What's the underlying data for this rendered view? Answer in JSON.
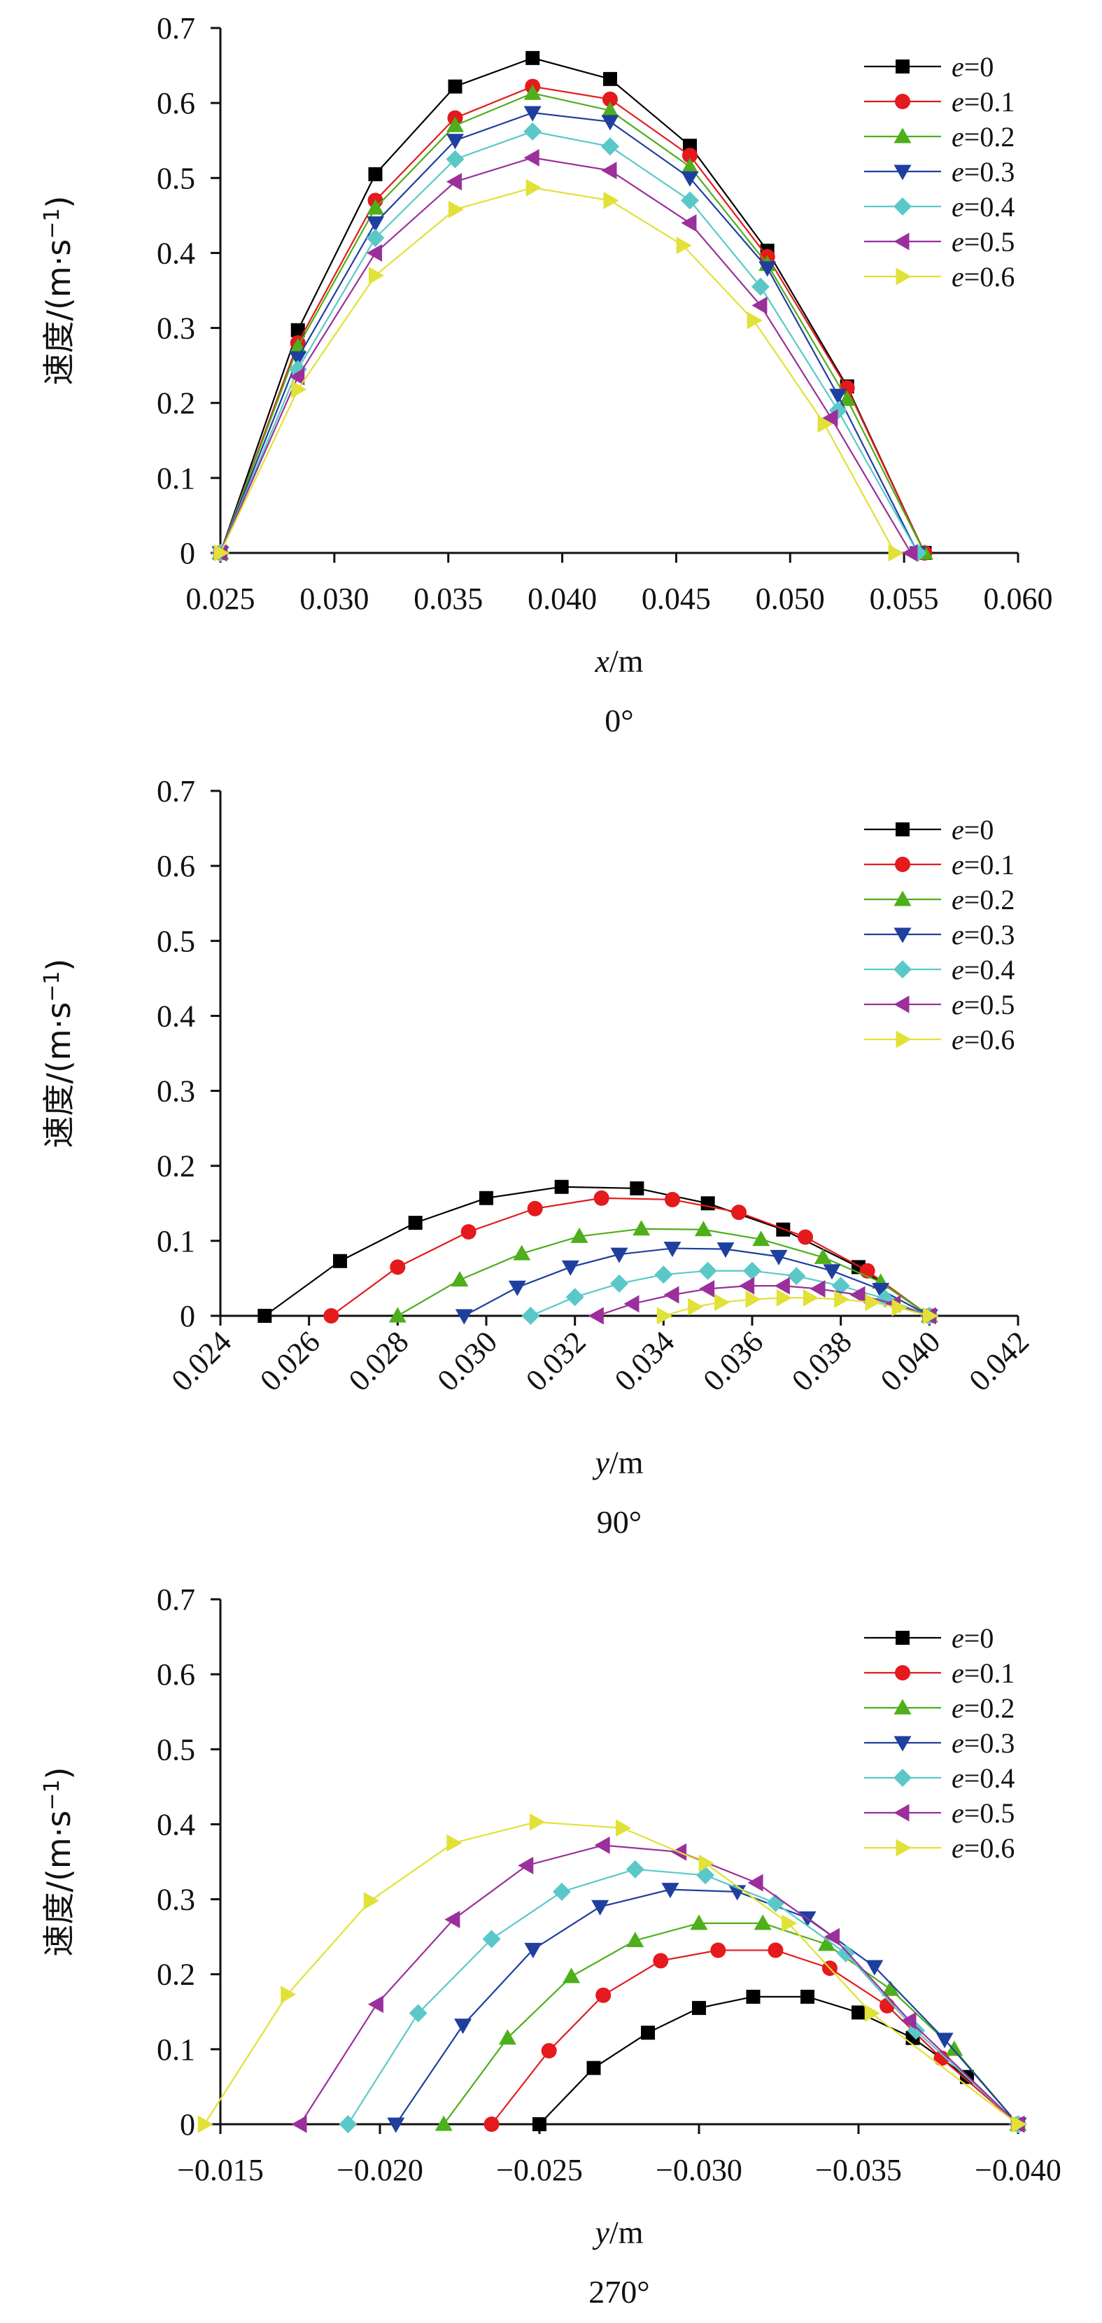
{
  "colors": {
    "e0": "#000000",
    "e01": "#e41a1c",
    "e02": "#4daf1a",
    "e03": "#1f3f9f",
    "e04": "#5bc8c8",
    "e05": "#9b2f9b",
    "e06": "#e1e137"
  },
  "chart_data": [
    {
      "type": "line",
      "caption": "0°",
      "xlabel_var": "x",
      "xlabel_unit": "/m",
      "ylabel": "速度/(m·s",
      "ylabel_sup": "−1",
      "ylabel_close": ")",
      "xlim": [
        0.025,
        0.06
      ],
      "ylim": [
        0,
        0.7
      ],
      "xticks": [
        "0.025",
        "0.030",
        "0.035",
        "0.040",
        "0.045",
        "0.050",
        "0.055",
        "0.060"
      ],
      "xtick_values": [
        0.025,
        0.03,
        0.035,
        0.04,
        0.045,
        0.05,
        0.055,
        0.06
      ],
      "yticks": [
        "0",
        "0.1",
        "0.2",
        "0.3",
        "0.4",
        "0.5",
        "0.6",
        "0.7"
      ],
      "ytick_values": [
        0,
        0.1,
        0.2,
        0.3,
        0.4,
        0.5,
        0.6,
        0.7
      ],
      "xtick_rotate": false,
      "legend_position": "top-right",
      "series": [
        {
          "name_var": "e",
          "name_val": "=0",
          "color_key": "e0",
          "marker": "square",
          "x": [
            0.025,
            0.0284,
            0.0318,
            0.0353,
            0.0387,
            0.0421,
            0.0456,
            0.049,
            0.0525,
            0.0559
          ],
          "y": [
            0,
            0.297,
            0.505,
            0.622,
            0.66,
            0.632,
            0.543,
            0.403,
            0.222,
            0
          ]
        },
        {
          "name_var": "e",
          "name_val": "=0.1",
          "color_key": "e01",
          "marker": "circle",
          "x": [
            0.025,
            0.0284,
            0.0318,
            0.0353,
            0.0387,
            0.0421,
            0.0456,
            0.049,
            0.0525,
            0.0559
          ],
          "y": [
            0,
            0.28,
            0.47,
            0.58,
            0.622,
            0.605,
            0.53,
            0.395,
            0.22,
            0
          ]
        },
        {
          "name_var": "e",
          "name_val": "=0.2",
          "color_key": "e02",
          "marker": "triangle-up",
          "x": [
            0.025,
            0.0284,
            0.0318,
            0.0353,
            0.0387,
            0.0421,
            0.0456,
            0.049,
            0.0525,
            0.0559
          ],
          "y": [
            0,
            0.275,
            0.46,
            0.57,
            0.613,
            0.59,
            0.515,
            0.385,
            0.205,
            0
          ]
        },
        {
          "name_var": "e",
          "name_val": "=0.3",
          "color_key": "e03",
          "marker": "triangle-down",
          "x": [
            0.025,
            0.0284,
            0.0318,
            0.0353,
            0.0387,
            0.0421,
            0.0456,
            0.049,
            0.0521,
            0.0556
          ],
          "y": [
            0,
            0.26,
            0.44,
            0.55,
            0.587,
            0.575,
            0.5,
            0.38,
            0.21,
            0
          ]
        },
        {
          "name_var": "e",
          "name_val": "=0.4",
          "color_key": "e04",
          "marker": "diamond",
          "x": [
            0.025,
            0.0284,
            0.0318,
            0.0353,
            0.0387,
            0.0421,
            0.0456,
            0.0487,
            0.0521,
            0.0556
          ],
          "y": [
            0,
            0.245,
            0.42,
            0.525,
            0.562,
            0.542,
            0.47,
            0.355,
            0.19,
            0
          ]
        },
        {
          "name_var": "e",
          "name_val": "=0.5",
          "color_key": "e05",
          "marker": "triangle-left",
          "x": [
            0.025,
            0.0284,
            0.0318,
            0.0353,
            0.0387,
            0.0421,
            0.0456,
            0.0487,
            0.0518,
            0.0553
          ],
          "y": [
            0,
            0.235,
            0.4,
            0.495,
            0.527,
            0.51,
            0.44,
            0.33,
            0.18,
            0
          ]
        },
        {
          "name_var": "e",
          "name_val": "=0.6",
          "color_key": "e06",
          "marker": "triangle-right",
          "x": [
            0.025,
            0.0284,
            0.0318,
            0.0353,
            0.0387,
            0.0421,
            0.0453,
            0.0484,
            0.0515,
            0.0546
          ],
          "y": [
            0,
            0.218,
            0.37,
            0.458,
            0.487,
            0.47,
            0.41,
            0.31,
            0.172,
            0
          ]
        }
      ]
    },
    {
      "type": "line",
      "caption": "90°",
      "xlabel_var": "y",
      "xlabel_unit": "/m",
      "ylabel": "速度/(m·s",
      "ylabel_sup": "−1",
      "ylabel_close": ")",
      "xlim": [
        0.024,
        0.042
      ],
      "ylim": [
        0,
        0.7
      ],
      "xticks": [
        "0.024",
        "0.026",
        "0.028",
        "0.030",
        "0.032",
        "0.034",
        "0.036",
        "0.038",
        "0.040",
        "0.042"
      ],
      "xtick_values": [
        0.024,
        0.026,
        0.028,
        0.03,
        0.032,
        0.034,
        0.036,
        0.038,
        0.04,
        0.042
      ],
      "yticks": [
        "0",
        "0.1",
        "0.2",
        "0.3",
        "0.4",
        "0.5",
        "0.6",
        "0.7"
      ],
      "ytick_values": [
        0,
        0.1,
        0.2,
        0.3,
        0.4,
        0.5,
        0.6,
        0.7
      ],
      "xtick_rotate": true,
      "legend_position": "top-right",
      "series": [
        {
          "name_var": "e",
          "name_val": "=0",
          "color_key": "e0",
          "marker": "square",
          "x": [
            0.025,
            0.0267,
            0.0284,
            0.03,
            0.0317,
            0.0334,
            0.035,
            0.0367,
            0.0384,
            0.04
          ],
          "y": [
            0,
            0.073,
            0.124,
            0.157,
            0.172,
            0.17,
            0.15,
            0.115,
            0.065,
            0
          ]
        },
        {
          "name_var": "e",
          "name_val": "=0.1",
          "color_key": "e01",
          "marker": "circle",
          "x": [
            0.0265,
            0.028,
            0.0296,
            0.0311,
            0.0326,
            0.0342,
            0.0357,
            0.0372,
            0.0386,
            0.04
          ],
          "y": [
            0,
            0.065,
            0.112,
            0.143,
            0.157,
            0.155,
            0.138,
            0.105,
            0.06,
            0
          ]
        },
        {
          "name_var": "e",
          "name_val": "=0.2",
          "color_key": "e02",
          "marker": "triangle-up",
          "x": [
            0.028,
            0.0294,
            0.0308,
            0.0321,
            0.0335,
            0.0349,
            0.0362,
            0.0376,
            0.0389,
            0.04
          ],
          "y": [
            0,
            0.048,
            0.083,
            0.106,
            0.116,
            0.115,
            0.102,
            0.078,
            0.045,
            0
          ]
        },
        {
          "name_var": "e",
          "name_val": "=0.3",
          "color_key": "e03",
          "marker": "triangle-down",
          "x": [
            0.0295,
            0.0307,
            0.0319,
            0.033,
            0.0342,
            0.0354,
            0.0366,
            0.0378,
            0.0389,
            0.04
          ],
          "y": [
            0,
            0.038,
            0.065,
            0.082,
            0.09,
            0.089,
            0.079,
            0.06,
            0.035,
            0
          ]
        },
        {
          "name_var": "e",
          "name_val": "=0.4",
          "color_key": "e04",
          "marker": "diamond",
          "x": [
            0.031,
            0.032,
            0.033,
            0.034,
            0.035,
            0.036,
            0.037,
            0.038,
            0.039,
            0.04
          ],
          "y": [
            0,
            0.025,
            0.043,
            0.055,
            0.06,
            0.06,
            0.053,
            0.04,
            0.023,
            0
          ]
        },
        {
          "name_var": "e",
          "name_val": "=0.5",
          "color_key": "e05",
          "marker": "triangle-left",
          "x": [
            0.0325,
            0.0333,
            0.0342,
            0.035,
            0.0359,
            0.0367,
            0.0375,
            0.0384,
            0.0392,
            0.04
          ],
          "y": [
            0,
            0.016,
            0.028,
            0.036,
            0.04,
            0.04,
            0.036,
            0.028,
            0.016,
            0
          ]
        },
        {
          "name_var": "e",
          "name_val": "=0.6",
          "color_key": "e06",
          "marker": "triangle-right",
          "x": [
            0.034,
            0.0347,
            0.0353,
            0.036,
            0.0367,
            0.0373,
            0.038,
            0.0387,
            0.0393,
            0.04
          ],
          "y": [
            0,
            0.012,
            0.018,
            0.022,
            0.024,
            0.024,
            0.022,
            0.018,
            0.011,
            0
          ]
        }
      ]
    },
    {
      "type": "line",
      "caption": "270°",
      "xlabel_var": "y",
      "xlabel_unit": "/m",
      "ylabel": "速度/(m·s",
      "ylabel_sup": "−1",
      "ylabel_close": ")",
      "xlim": [
        -0.015,
        -0.04
      ],
      "ylim": [
        0,
        0.7
      ],
      "xticks": [
        "−0.015",
        "−0.020",
        "−0.025",
        "−0.030",
        "−0.035",
        "−0.040"
      ],
      "xtick_values": [
        -0.015,
        -0.02,
        -0.025,
        -0.03,
        -0.035,
        -0.04
      ],
      "yticks": [
        "0",
        "0.1",
        "0.2",
        "0.3",
        "0.4",
        "0.5",
        "0.6",
        "0.7"
      ],
      "ytick_values": [
        0,
        0.1,
        0.2,
        0.3,
        0.4,
        0.5,
        0.6,
        0.7
      ],
      "xtick_rotate": false,
      "legend_position": "top-right",
      "series": [
        {
          "name_var": "e",
          "name_val": "=0",
          "color_key": "e0",
          "marker": "square",
          "x": [
            -0.025,
            -0.0267,
            -0.0284,
            -0.03,
            -0.0317,
            -0.0334,
            -0.035,
            -0.0367,
            -0.0384,
            -0.04
          ],
          "y": [
            0,
            0.075,
            0.122,
            0.155,
            0.17,
            0.17,
            0.149,
            0.115,
            0.063,
            0
          ]
        },
        {
          "name_var": "e",
          "name_val": "=0.1",
          "color_key": "e01",
          "marker": "circle",
          "x": [
            -0.0235,
            -0.0253,
            -0.027,
            -0.0288,
            -0.0306,
            -0.0324,
            -0.0341,
            -0.0359,
            -0.0376,
            -0.04
          ],
          "y": [
            0,
            0.098,
            0.172,
            0.218,
            0.232,
            0.232,
            0.208,
            0.158,
            0.088,
            0
          ]
        },
        {
          "name_var": "e",
          "name_val": "=0.2",
          "color_key": "e02",
          "marker": "triangle-up",
          "x": [
            -0.022,
            -0.024,
            -0.026,
            -0.028,
            -0.03,
            -0.032,
            -0.034,
            -0.036,
            -0.038,
            -0.04
          ],
          "y": [
            0,
            0.115,
            0.197,
            0.245,
            0.268,
            0.268,
            0.24,
            0.18,
            0.1,
            0
          ]
        },
        {
          "name_var": "e",
          "name_val": "=0.3",
          "color_key": "e03",
          "marker": "triangle-down",
          "x": [
            -0.0205,
            -0.0226,
            -0.0248,
            -0.0269,
            -0.0291,
            -0.0312,
            -0.0334,
            -0.0355,
            -0.0377,
            -0.04
          ],
          "y": [
            0,
            0.132,
            0.233,
            0.29,
            0.313,
            0.31,
            0.275,
            0.21,
            0.113,
            0
          ]
        },
        {
          "name_var": "e",
          "name_val": "=0.4",
          "color_key": "e04",
          "marker": "diamond",
          "x": [
            -0.019,
            -0.0212,
            -0.0235,
            -0.0257,
            -0.028,
            -0.0302,
            -0.0324,
            -0.0346,
            -0.0368,
            -0.04
          ],
          "y": [
            0,
            0.148,
            0.247,
            0.31,
            0.34,
            0.332,
            0.295,
            0.228,
            0.125,
            0
          ]
        },
        {
          "name_var": "e",
          "name_val": "=0.5",
          "color_key": "e05",
          "marker": "triangle-left",
          "x": [
            -0.0175,
            -0.0199,
            -0.0223,
            -0.0246,
            -0.027,
            -0.0294,
            -0.0318,
            -0.0342,
            -0.0366,
            -0.04
          ],
          "y": [
            0,
            0.16,
            0.273,
            0.345,
            0.372,
            0.363,
            0.322,
            0.25,
            0.138,
            0
          ]
        },
        {
          "name_var": "e",
          "name_val": "=0.6",
          "color_key": "e06",
          "marker": "triangle-right",
          "x": [
            -0.0145,
            -0.0171,
            -0.0197,
            -0.0223,
            -0.0249,
            -0.0276,
            -0.0302,
            -0.0328,
            -0.0354,
            -0.04
          ],
          "y": [
            0,
            0.173,
            0.298,
            0.375,
            0.403,
            0.395,
            0.348,
            0.268,
            0.148,
            0
          ]
        }
      ]
    }
  ]
}
